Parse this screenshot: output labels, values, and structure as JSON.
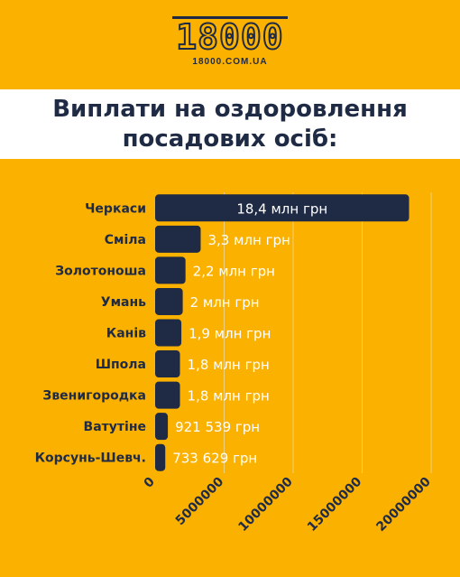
{
  "logo": {
    "number": "18000",
    "url": "18000.COM.UA"
  },
  "title": "Виплати на оздоровлення посадових осіб:",
  "colors": {
    "background": "#FBB100",
    "bar": "#1f2a44",
    "title_band": "#ffffff",
    "text_dark": "#1f2a44",
    "grid": "#f2d079"
  },
  "chart_data": {
    "type": "bar",
    "orientation": "horizontal",
    "categories": [
      "Черкаси",
      "Сміла",
      "Золотоноша",
      "Умань",
      "Канів",
      "Шпола",
      "Звенигородка",
      "Ватутіне",
      "Корсунь-Шевч."
    ],
    "values": [
      18400000,
      3300000,
      2200000,
      2000000,
      1900000,
      1800000,
      1800000,
      921539,
      733629
    ],
    "labels": [
      "18,4 млн грн",
      "3,3 млн грн",
      "2,2 млн грн",
      "2 млн грн",
      "1,9 млн грн",
      "1,8 млн грн",
      "1,8 млн грн",
      "921 539 грн",
      "733 629 грн"
    ],
    "xlim": [
      0,
      20000000
    ],
    "ticks": [
      0,
      5000000,
      10000000,
      15000000,
      20000000
    ],
    "tick_labels": [
      "0",
      "5000000",
      "10000000",
      "15000000",
      "20000000"
    ],
    "grid": true,
    "title": "Виплати на оздоровлення посадових осіб:"
  }
}
